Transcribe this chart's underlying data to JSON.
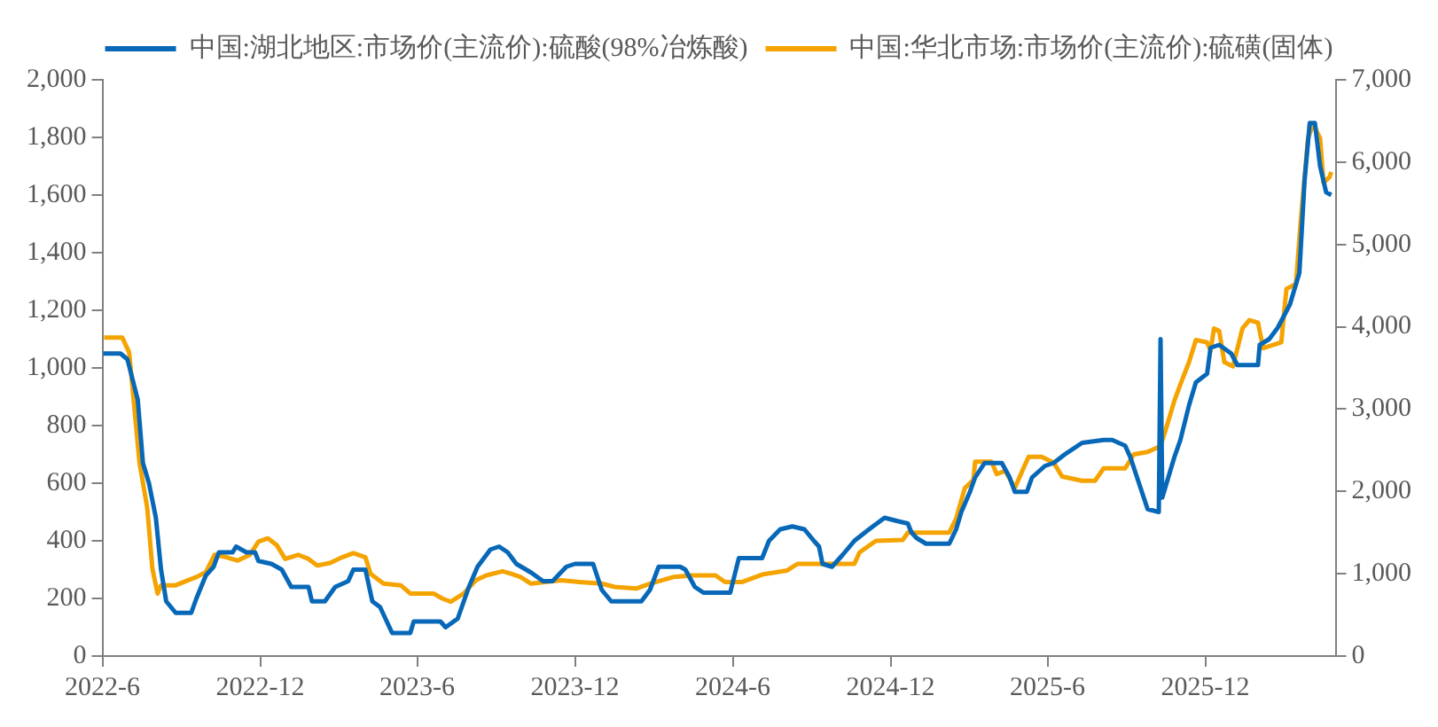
{
  "chart_data": {
    "type": "line",
    "legend": "top",
    "grid": false,
    "xlim": [
      "2022-06",
      "2026-05"
    ],
    "xticks": [
      {
        "value": "2022-06",
        "label": "2022-6"
      },
      {
        "value": "2022-12",
        "label": "2022-12"
      },
      {
        "value": "2023-06",
        "label": "2023-6"
      },
      {
        "value": "2023-12",
        "label": "2023-12"
      },
      {
        "value": "2024-06",
        "label": "2024-6"
      },
      {
        "value": "2024-12",
        "label": "2024-12"
      },
      {
        "value": "2025-06",
        "label": "2025-6"
      },
      {
        "value": "2025-12",
        "label": "2025-12"
      }
    ],
    "ylim": [
      0,
      2000
    ],
    "yticks": [
      0,
      200,
      400,
      600,
      800,
      {
        "value": 1000,
        "label": "1,000"
      },
      {
        "value": 1200,
        "label": "1,200"
      },
      {
        "value": 1400,
        "label": "1,400"
      },
      {
        "value": 1600,
        "label": "1,600"
      },
      {
        "value": 1800,
        "label": "1,800"
      },
      {
        "value": 2000,
        "label": "2,000"
      }
    ],
    "y2lim": [
      0,
      7000
    ],
    "y2ticks": [
      0,
      {
        "value": 1000,
        "label": "1,000"
      },
      {
        "value": 2000,
        "label": "2,000"
      },
      {
        "value": 3000,
        "label": "3,000"
      },
      {
        "value": 4000,
        "label": "4,000"
      },
      {
        "value": 5000,
        "label": "5,000"
      },
      {
        "value": 6000,
        "label": "6,000"
      },
      {
        "value": 7000,
        "label": "7,000"
      }
    ],
    "series": [
      {
        "name": "中国:湖北地区:市场价(主流价):硫酸(98%冶炼酸)",
        "color": "#0868b8",
        "axis": "y",
        "x": [
          "2022-06-02",
          "2022-06-22",
          "2022-06-30",
          "2022-07-12",
          "2022-07-18",
          "2022-07-25",
          "2022-08-02",
          "2022-08-08",
          "2022-08-14",
          "2022-08-25",
          "2022-09-12",
          "2022-09-18",
          "2022-09-29",
          "2022-10-08",
          "2022-10-14",
          "2022-10-30",
          "2022-11-03",
          "2022-11-15",
          "2022-11-25",
          "2022-11-29",
          "2022-12-14",
          "2022-12-26",
          "2023-01-06",
          "2023-01-26",
          "2023-01-30",
          "2023-02-14",
          "2023-02-26",
          "2023-03-13",
          "2023-03-19",
          "2023-04-02",
          "2023-04-10",
          "2023-04-19",
          "2023-05-03",
          "2023-05-24",
          "2023-05-28",
          "2023-06-28",
          "2023-07-04",
          "2023-07-18",
          "2023-07-31",
          "2023-08-10",
          "2023-08-25",
          "2023-09-04",
          "2023-09-14",
          "2023-09-24",
          "2023-10-11",
          "2023-10-25",
          "2023-11-05",
          "2023-11-21",
          "2023-12-01",
          "2023-12-22",
          "2024-01-01",
          "2024-01-12",
          "2024-02-16",
          "2024-02-26",
          "2024-03-07",
          "2024-04-01",
          "2024-04-07",
          "2024-04-18",
          "2024-04-28",
          "2024-05-29",
          "2024-06-08",
          "2024-07-05",
          "2024-07-13",
          "2024-07-26",
          "2024-08-09",
          "2024-08-23",
          "2024-09-03",
          "2024-09-09",
          "2024-09-13",
          "2024-09-24",
          "2024-10-06",
          "2024-10-20",
          "2024-11-06",
          "2024-11-24",
          "2024-12-07",
          "2024-12-21",
          "2024-12-25",
          "2024-12-31",
          "2025-01-11",
          "2025-02-07",
          "2025-02-15",
          "2025-02-21",
          "2025-03-03",
          "2025-03-09",
          "2025-03-20",
          "2025-04-09",
          "2025-04-18",
          "2025-04-24",
          "2025-05-08",
          "2025-05-14",
          "2025-05-29",
          "2025-06-08",
          "2025-06-21",
          "2025-07-11",
          "2025-08-05",
          "2025-08-15",
          "2025-08-30",
          "2025-09-05",
          "2025-09-15",
          "2025-09-25",
          "2025-10-08",
          "2025-10-10",
          "2025-10-12",
          "2025-10-20",
          "2025-10-26",
          "2025-11-02",
          "2025-11-12",
          "2025-11-20",
          "2025-12-03",
          "2025-12-07",
          "2025-12-17",
          "2025-12-31",
          "2026-01-07",
          "2026-01-31",
          "2026-02-02",
          "2026-02-13",
          "2026-02-23",
          "2026-03-09",
          "2026-03-20",
          "2026-03-26",
          "2026-04-01",
          "2026-04-07",
          "2026-04-13",
          "2026-04-20",
          "2026-04-26"
        ],
        "values": [
          1050,
          1050,
          1030,
          890,
          670,
          600,
          480,
          300,
          190,
          150,
          150,
          200,
          280,
          310,
          360,
          360,
          380,
          360,
          360,
          330,
          320,
          300,
          240,
          240,
          190,
          190,
          240,
          260,
          300,
          300,
          190,
          170,
          80,
          80,
          120,
          120,
          100,
          130,
          240,
          310,
          370,
          380,
          360,
          320,
          290,
          260,
          260,
          310,
          320,
          320,
          230,
          190,
          190,
          230,
          310,
          310,
          300,
          240,
          220,
          220,
          340,
          340,
          400,
          440,
          450,
          440,
          400,
          380,
          320,
          310,
          350,
          400,
          440,
          480,
          470,
          460,
          430,
          410,
          390,
          390,
          440,
          500,
          570,
          620,
          670,
          670,
          620,
          570,
          570,
          620,
          660,
          670,
          700,
          740,
          750,
          750,
          730,
          690,
          600,
          510,
          500,
          1100,
          550,
          630,
          690,
          750,
          870,
          950,
          980,
          1070,
          1080,
          1050,
          1010,
          1010,
          1080,
          1100,
          1140,
          1220,
          1330,
          1650,
          1850,
          1850,
          1700,
          1610,
          1600
        ]
      },
      {
        "name": "中国:华北市场:市场价(主流价):硫磺(固体)",
        "color": "#f5a300",
        "axis": "y2",
        "x": [
          "2022-06-03",
          "2022-06-24",
          "2022-07-02",
          "2022-07-08",
          "2022-07-14",
          "2022-07-23",
          "2022-07-29",
          "2022-08-04",
          "2022-08-08",
          "2022-08-25",
          "2022-09-08",
          "2022-09-18",
          "2022-09-29",
          "2022-10-09",
          "2022-10-23",
          "2022-11-05",
          "2022-11-19",
          "2022-11-29",
          "2022-12-10",
          "2022-12-20",
          "2022-12-30",
          "2023-01-14",
          "2023-01-26",
          "2023-02-05",
          "2023-02-20",
          "2023-03-06",
          "2023-03-19",
          "2023-04-02",
          "2023-04-08",
          "2023-04-23",
          "2023-05-13",
          "2023-05-24",
          "2023-06-20",
          "2023-06-30",
          "2023-07-10",
          "2023-07-25",
          "2023-08-08",
          "2023-08-20",
          "2023-09-08",
          "2023-09-18",
          "2023-09-29",
          "2023-10-11",
          "2023-11-15",
          "2023-12-06",
          "2024-01-01",
          "2024-01-16",
          "2024-02-10",
          "2024-02-26",
          "2024-03-24",
          "2024-04-14",
          "2024-05-12",
          "2024-05-23",
          "2024-06-12",
          "2024-07-05",
          "2024-08-03",
          "2024-08-15",
          "2024-10-20",
          "2024-10-26",
          "2024-11-14",
          "2024-12-15",
          "2024-12-21",
          "2025-02-07",
          "2025-02-15",
          "2025-02-25",
          "2025-03-07",
          "2025-03-09",
          "2025-03-28",
          "2025-04-03",
          "2025-04-13",
          "2025-04-24",
          "2025-05-04",
          "2025-05-10",
          "2025-05-25",
          "2025-06-08",
          "2025-06-18",
          "2025-07-11",
          "2025-07-26",
          "2025-08-05",
          "2025-08-30",
          "2025-09-09",
          "2025-09-25",
          "2025-10-10",
          "2025-10-16",
          "2025-10-26",
          "2025-11-02",
          "2025-11-12",
          "2025-11-20",
          "2025-12-03",
          "2025-12-07",
          "2025-12-11",
          "2025-12-17",
          "2025-12-23",
          "2026-01-02",
          "2026-01-13",
          "2026-01-21",
          "2026-01-31",
          "2026-02-06",
          "2026-02-27",
          "2026-03-05",
          "2026-03-16",
          "2026-03-22",
          "2026-03-30",
          "2026-04-05",
          "2026-04-13",
          "2026-04-17",
          "2026-04-24",
          "2026-04-26"
        ],
        "values": [
          3870,
          3870,
          3690,
          3030,
          2350,
          1800,
          1060,
          760,
          860,
          860,
          920,
          960,
          1020,
          1230,
          1200,
          1160,
          1230,
          1390,
          1430,
          1350,
          1180,
          1230,
          1180,
          1100,
          1130,
          1200,
          1250,
          1200,
          1000,
          880,
          860,
          760,
          760,
          700,
          660,
          760,
          920,
          980,
          1030,
          1000,
          960,
          880,
          920,
          900,
          880,
          840,
          820,
          880,
          960,
          980,
          980,
          900,
          900,
          990,
          1040,
          1120,
          1120,
          1260,
          1400,
          1410,
          1500,
          1500,
          1670,
          2040,
          2140,
          2360,
          2360,
          2210,
          2250,
          2040,
          2280,
          2420,
          2420,
          2350,
          2180,
          2130,
          2130,
          2280,
          2280,
          2450,
          2480,
          2550,
          2750,
          3100,
          3300,
          3570,
          3840,
          3810,
          3710,
          3980,
          3950,
          3570,
          3520,
          3980,
          4080,
          4050,
          3740,
          3810,
          4460,
          4520,
          5340,
          6290,
          6460,
          6290,
          5750,
          5820,
          5880
        ]
      }
    ]
  }
}
